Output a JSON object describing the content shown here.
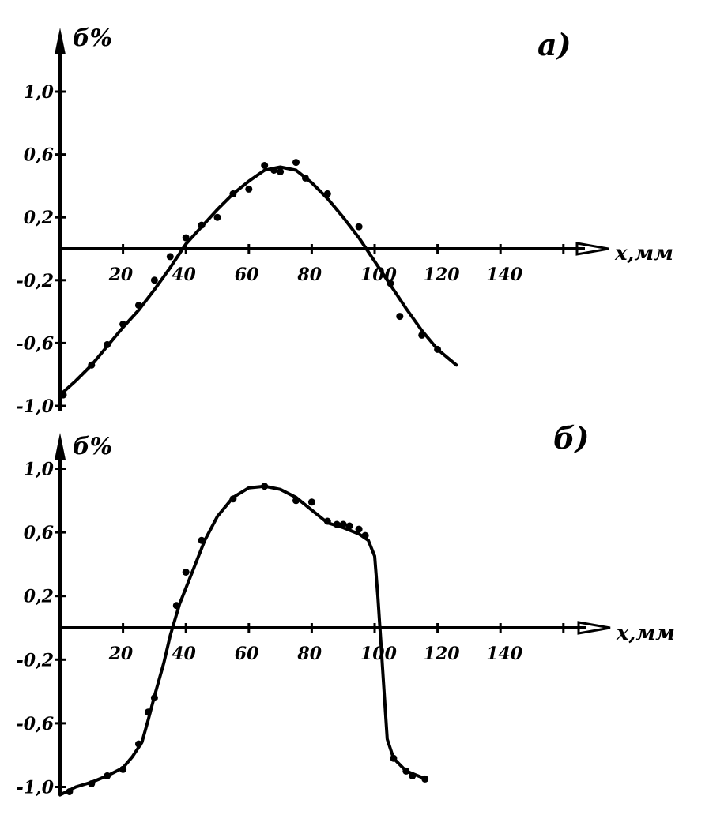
{
  "chart_data": [
    {
      "type": "line",
      "panel_label": "a)",
      "ylabel": "б%",
      "xlabel": "x,мм",
      "xlim": [
        0,
        160
      ],
      "ylim": [
        -1.0,
        1.0
      ],
      "x_ticks": [
        20,
        40,
        60,
        80,
        100,
        120,
        140,
        160
      ],
      "x_tick_labels": [
        "20",
        "40",
        "60",
        "80",
        "100",
        "120",
        "140",
        ""
      ],
      "y_ticks": [
        -1.0,
        -0.6,
        -0.2,
        0.2,
        0.6,
        1.0
      ],
      "y_tick_labels": [
        "-1,0",
        "-0,6",
        "-0,2",
        "0,2",
        "0,6",
        "1,0"
      ],
      "curve": {
        "x": [
          0,
          5,
          10,
          15,
          20,
          25,
          30,
          35,
          40,
          45,
          50,
          55,
          60,
          65,
          70,
          75,
          80,
          85,
          90,
          95,
          100,
          105,
          110,
          115,
          120,
          126
        ],
        "y": [
          -0.93,
          -0.84,
          -0.74,
          -0.62,
          -0.5,
          -0.39,
          -0.26,
          -0.12,
          0.03,
          0.14,
          0.25,
          0.35,
          0.43,
          0.5,
          0.52,
          0.5,
          0.42,
          0.32,
          0.2,
          0.07,
          -0.08,
          -0.23,
          -0.38,
          -0.52,
          -0.64,
          -0.74
        ]
      },
      "points": {
        "x": [
          1,
          10,
          15,
          20,
          25,
          30,
          35,
          40,
          45,
          50,
          55,
          60,
          65,
          68,
          70,
          75,
          78,
          85,
          95,
          105,
          108,
          115,
          120
        ],
        "y": [
          -0.93,
          -0.74,
          -0.61,
          -0.48,
          -0.36,
          -0.2,
          -0.05,
          0.07,
          0.15,
          0.2,
          0.35,
          0.38,
          0.53,
          0.5,
          0.49,
          0.55,
          0.45,
          0.35,
          0.14,
          -0.22,
          -0.43,
          -0.55,
          -0.64
        ]
      }
    },
    {
      "type": "line",
      "panel_label": "б)",
      "ylabel": "б%",
      "xlabel": "x,мм",
      "xlim": [
        0,
        160
      ],
      "ylim": [
        -1.0,
        1.0
      ],
      "x_ticks": [
        20,
        40,
        60,
        80,
        100,
        120,
        140,
        160
      ],
      "x_tick_labels": [
        "20",
        "40",
        "60",
        "80",
        "100",
        "120",
        "140",
        ""
      ],
      "y_ticks": [
        -1.0,
        -0.6,
        -0.2,
        0.2,
        0.6,
        1.0
      ],
      "y_tick_labels": [
        "-1,0",
        "-0,6",
        "-0,2",
        "0,2",
        "0,6",
        "1,0"
      ],
      "curve": {
        "x": [
          0,
          5,
          10,
          15,
          20,
          23,
          26,
          28,
          30,
          33,
          35,
          38,
          42,
          46,
          50,
          55,
          60,
          65,
          70,
          75,
          80,
          85,
          90,
          95,
          98,
          100,
          101,
          102,
          103,
          104,
          106,
          110,
          115
        ],
        "y": [
          -1.05,
          -1.0,
          -0.97,
          -0.93,
          -0.88,
          -0.81,
          -0.72,
          -0.58,
          -0.43,
          -0.22,
          -0.05,
          0.15,
          0.35,
          0.55,
          0.7,
          0.82,
          0.88,
          0.89,
          0.87,
          0.82,
          0.74,
          0.66,
          0.63,
          0.59,
          0.55,
          0.45,
          0.2,
          -0.1,
          -0.4,
          -0.7,
          -0.82,
          -0.9,
          -0.94
        ]
      },
      "points": {
        "x": [
          3,
          10,
          15,
          20,
          25,
          28,
          30,
          37,
          40,
          45,
          55,
          65,
          75,
          80,
          85,
          88,
          90,
          92,
          95,
          97,
          106,
          110,
          112,
          116
        ],
        "y": [
          -1.03,
          -0.98,
          -0.93,
          -0.89,
          -0.73,
          -0.53,
          -0.44,
          0.14,
          0.35,
          0.55,
          0.81,
          0.89,
          0.8,
          0.79,
          0.67,
          0.65,
          0.65,
          0.64,
          0.62,
          0.58,
          -0.82,
          -0.9,
          -0.93,
          -0.95
        ]
      }
    }
  ]
}
